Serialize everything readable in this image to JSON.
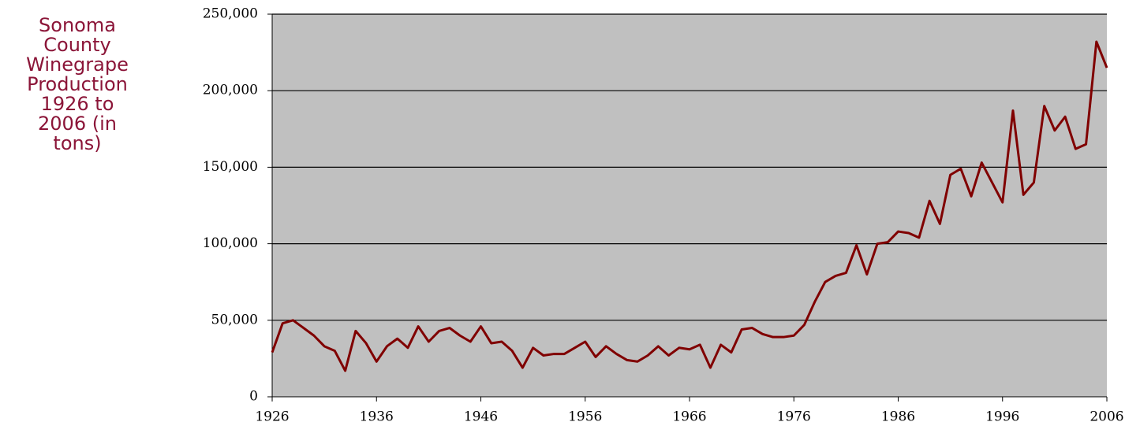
{
  "chart_data": {
    "type": "line",
    "title": "Sonoma County Winegrape Production 1926 to 2006 (in tons)",
    "x": [
      1926,
      1927,
      1928,
      1929,
      1930,
      1931,
      1932,
      1933,
      1934,
      1935,
      1936,
      1937,
      1938,
      1939,
      1940,
      1941,
      1942,
      1943,
      1944,
      1945,
      1946,
      1947,
      1948,
      1949,
      1950,
      1951,
      1952,
      1953,
      1954,
      1955,
      1956,
      1957,
      1958,
      1959,
      1960,
      1961,
      1962,
      1963,
      1964,
      1965,
      1966,
      1967,
      1968,
      1969,
      1970,
      1971,
      1972,
      1973,
      1974,
      1975,
      1976,
      1977,
      1978,
      1979,
      1980,
      1981,
      1982,
      1983,
      1984,
      1985,
      1986,
      1987,
      1988,
      1989,
      1990,
      1991,
      1992,
      1993,
      1994,
      1995,
      1996,
      1997,
      1998,
      1999,
      2000,
      2001,
      2002,
      2003,
      2004,
      2005,
      2006
    ],
    "series": [
      {
        "name": "Production",
        "color": "#800000",
        "values": [
          29000,
          48000,
          50000,
          45000,
          40000,
          33000,
          30000,
          17000,
          43000,
          35000,
          23000,
          33000,
          38000,
          32000,
          46000,
          36000,
          43000,
          45000,
          40000,
          36000,
          46000,
          35000,
          36000,
          30000,
          19000,
          32000,
          27000,
          28000,
          28000,
          32000,
          36000,
          26000,
          33000,
          28000,
          24000,
          23000,
          27000,
          33000,
          27000,
          32000,
          31000,
          34000,
          19000,
          34000,
          29000,
          44000,
          45000,
          41000,
          39000,
          39000,
          40000,
          47000,
          62000,
          75000,
          79000,
          81000,
          99000,
          80000,
          100000,
          101000,
          108000,
          107000,
          104000,
          128000,
          113000,
          145000,
          149000,
          131000,
          153000,
          140000,
          127000,
          187000,
          132000,
          140000,
          190000,
          174000,
          183000,
          162000,
          165000,
          232000,
          215000
        ]
      }
    ],
    "xlim": [
      1926,
      2006
    ],
    "xticks": [
      1926,
      1936,
      1946,
      1956,
      1966,
      1976,
      1986,
      1996,
      2006
    ],
    "ylim": [
      0,
      250000
    ],
    "yticks": [
      0,
      {
        "value": 50000,
        "label": "50,000"
      },
      {
        "value": 100000,
        "label": "100,000"
      },
      {
        "value": 150000,
        "label": "150,000"
      },
      {
        "value": 200000,
        "label": "200,000"
      },
      {
        "value": 250000,
        "label": "250,000"
      }
    ],
    "grid": true
  }
}
